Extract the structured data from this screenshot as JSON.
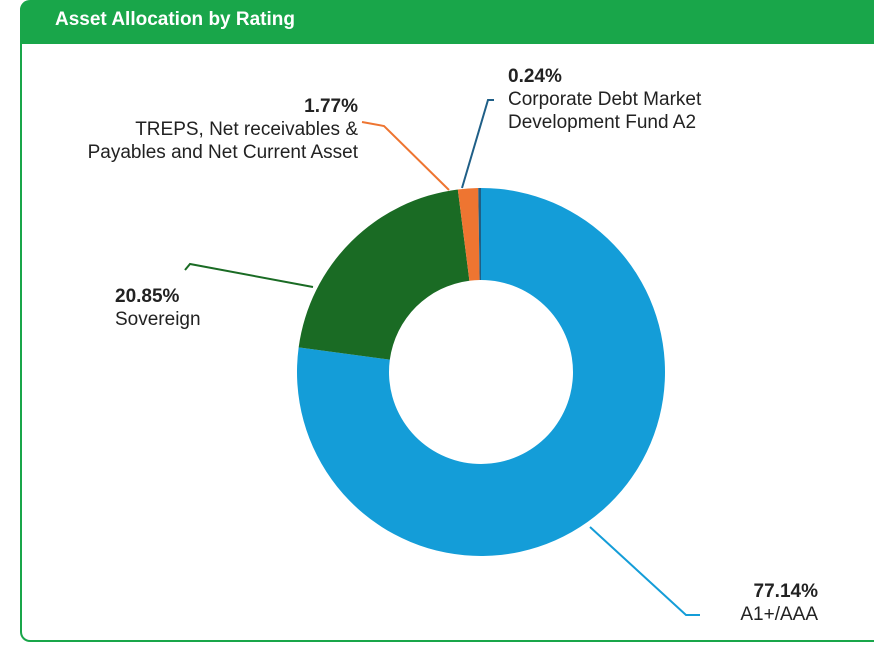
{
  "chart_data": {
    "type": "donut",
    "title": "Asset Allocation by Rating",
    "categories": [
      "A1+/AAA",
      "Sovereign",
      "TREPS, Net receivables & Payables and Net Current Asset",
      "Corporate Debt Market Development Fund A2"
    ],
    "values": [
      77.14,
      20.85,
      1.77,
      0.24
    ],
    "value_labels": [
      "77.14%",
      "20.85%",
      "1.77%",
      "0.24%"
    ],
    "colors": [
      "#149dd8",
      "#1a6b24",
      "#ee7531",
      "#1f5f87"
    ]
  }
}
